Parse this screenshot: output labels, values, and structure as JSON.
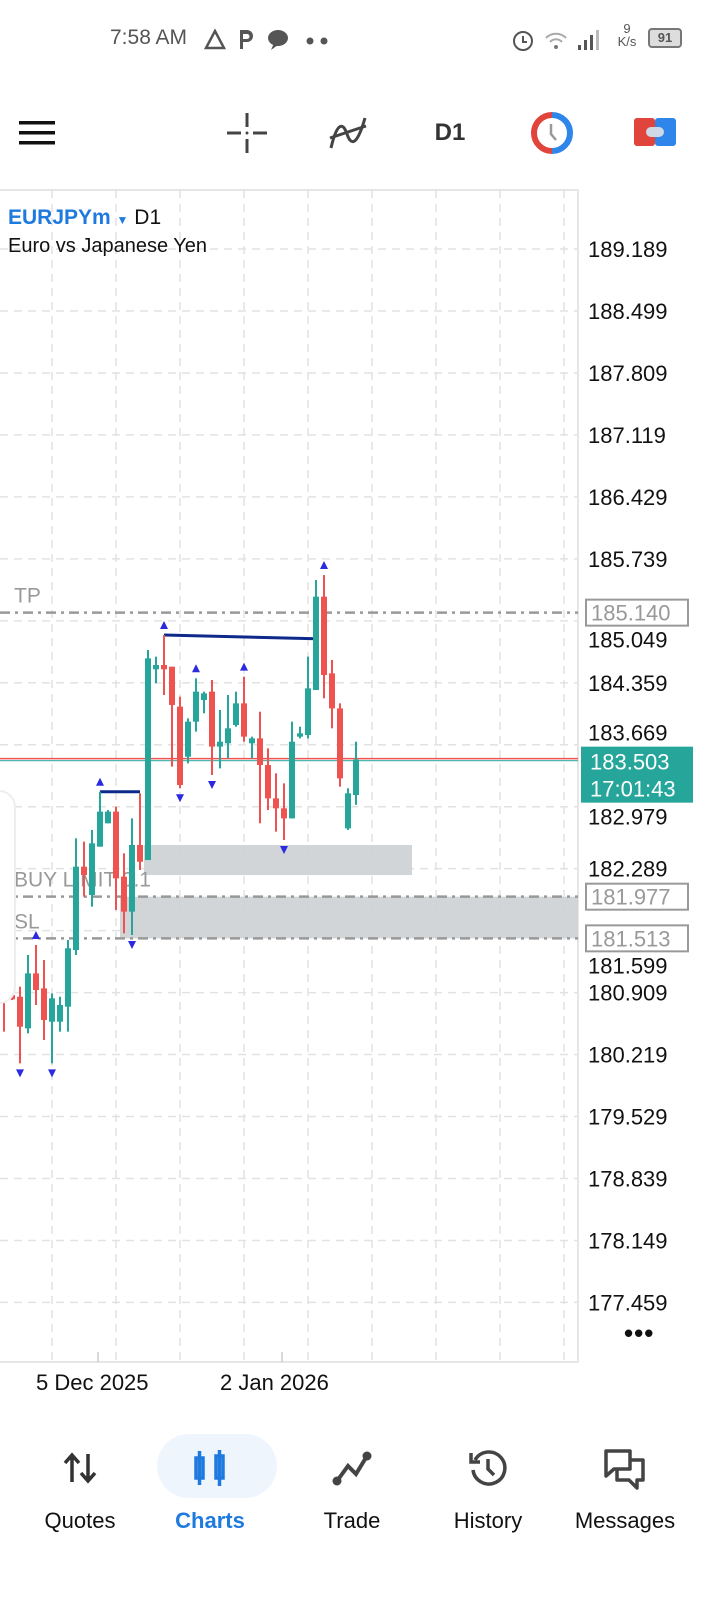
{
  "status_bar": {
    "time": "7:58 AM",
    "net_speed_value": "9",
    "net_speed_unit": "K/s",
    "battery": "91"
  },
  "toolbar": {
    "timeframe": "D1",
    "icons": [
      "menu-icon",
      "crosshair-icon",
      "indicators-icon",
      "timeframe",
      "chart-settings-icon",
      "one-click-trading-icon"
    ]
  },
  "symbol": {
    "name": "EURJPYm",
    "timeframe": "D1",
    "description": "Euro vs Japanese Yen"
  },
  "colors": {
    "bull": "#26a69a",
    "bear": "#ef5350",
    "fractal": "#2a2ae0",
    "level": "#0d2a8a",
    "accent": "#1f7ae0",
    "zone": "#cfd3d6"
  },
  "chart_data": {
    "type": "candlestick",
    "price_ticks": [
      "189.189",
      "188.499",
      "187.809",
      "187.119",
      "186.429",
      "185.739",
      "185.049",
      "184.359",
      "183.669",
      "182.979",
      "182.289",
      "181.599",
      "180.909",
      "180.219",
      "179.529",
      "178.839",
      "178.149",
      "177.459"
    ],
    "x_ticks": [
      {
        "label": "5 Dec 2025",
        "candle": 14
      },
      {
        "label": "2 Jan 2026",
        "candle": 37
      }
    ],
    "ohlc": [
      [
        181.272,
        181.513,
        180.474,
        180.9
      ],
      [
        180.882,
        181.123,
        180.826,
        180.834
      ],
      [
        180.863,
        180.975,
        180.121,
        180.529
      ],
      [
        180.511,
        181.328,
        180.455,
        181.123
      ],
      [
        181.123,
        181.439,
        180.771,
        180.938
      ],
      [
        180.956,
        181.272,
        180.381,
        180.604
      ],
      [
        180.585,
        180.9,
        180.121,
        180.845
      ],
      [
        180.585,
        180.863,
        180.474,
        180.771
      ],
      [
        180.752,
        181.495,
        180.474,
        181.402
      ],
      [
        181.383,
        182.627,
        181.328,
        182.311
      ],
      [
        182.311,
        182.59,
        181.977,
        182.218
      ],
      [
        181.996,
        182.72,
        181.866,
        182.571
      ],
      [
        182.534,
        183.146,
        182.534,
        182.924
      ],
      [
        182.794,
        182.942,
        182.794,
        182.924
      ],
      [
        182.924,
        182.979,
        181.829,
        182.181
      ],
      [
        182.2,
        182.46,
        181.569,
        181.81
      ],
      [
        181.81,
        182.849,
        181.55,
        182.553
      ],
      [
        182.553,
        183.128,
        182.274,
        182.366
      ],
      [
        182.385,
        184.724,
        182.385,
        184.631
      ],
      [
        184.509,
        184.65,
        184.353,
        184.557
      ],
      [
        184.557,
        184.891,
        184.223,
        184.509
      ],
      [
        184.538,
        184.538,
        183.425,
        184.112
      ],
      [
        184.093,
        184.204,
        183.184,
        183.221
      ],
      [
        183.536,
        183.963,
        183.462,
        183.926
      ],
      [
        183.926,
        184.409,
        183.815,
        184.26
      ],
      [
        184.167,
        184.26,
        184.019,
        184.241
      ],
      [
        184.26,
        184.39,
        183.332,
        183.648
      ],
      [
        183.648,
        184.056,
        183.406,
        183.703
      ],
      [
        183.685,
        184.223,
        183.518,
        183.852
      ],
      [
        183.889,
        184.26,
        183.87,
        184.13
      ],
      [
        184.13,
        184.427,
        183.703,
        183.759
      ],
      [
        183.685,
        183.759,
        183.518,
        183.74
      ],
      [
        183.74,
        184.037,
        182.794,
        183.443
      ],
      [
        183.443,
        183.629,
        182.942,
        183.072
      ],
      [
        183.072,
        183.351,
        182.701,
        182.961
      ],
      [
        182.961,
        183.239,
        182.608,
        182.849
      ],
      [
        182.849,
        183.926,
        182.849,
        183.703
      ],
      [
        183.759,
        183.87,
        183.74,
        183.796
      ],
      [
        183.777,
        184.65,
        183.74,
        184.297
      ],
      [
        184.279,
        185.503,
        184.279,
        185.318
      ],
      [
        185.318,
        185.559,
        184.186,
        184.446
      ],
      [
        184.464,
        184.613,
        183.852,
        184.074
      ],
      [
        184.074,
        184.13,
        183.202,
        183.295
      ],
      [
        182.738,
        183.184,
        182.72,
        183.128
      ],
      [
        183.109,
        183.703,
        183.0,
        183.503
      ]
    ],
    "fractals_up": [
      1,
      5,
      13,
      21,
      25,
      31,
      41
    ],
    "fractals_down": [
      3,
      7,
      17,
      23,
      27,
      36
    ],
    "levels": [
      {
        "from": 13,
        "to": 18,
        "start": 183.146,
        "end": 183.146
      },
      {
        "from": 21,
        "to": 40,
        "start": 184.891,
        "end": 184.85
      }
    ],
    "zones": [
      {
        "from": 19,
        "to": 52,
        "top": 182.553,
        "bottom": 182.218
      },
      {
        "from": 16,
        "to": 80,
        "top": 181.977,
        "bottom": 181.513
      }
    ],
    "current_price": "183.503",
    "bar_countdown": "17:01:43",
    "order_lines": [
      {
        "label": "TP",
        "price": "185.140"
      },
      {
        "label": "BUY LIMIT 0.1",
        "price": "181.977"
      },
      {
        "label": "SL",
        "price": "181.513"
      }
    ]
  },
  "nav": {
    "items": [
      {
        "label": "Quotes",
        "icon": "quotes-icon",
        "active": false
      },
      {
        "label": "Charts",
        "icon": "charts-icon",
        "active": true
      },
      {
        "label": "Trade",
        "icon": "trade-icon",
        "active": false
      },
      {
        "label": "History",
        "icon": "history-icon",
        "active": false
      },
      {
        "label": "Messages",
        "icon": "messages-icon",
        "active": false
      }
    ]
  },
  "more_label": "•••"
}
